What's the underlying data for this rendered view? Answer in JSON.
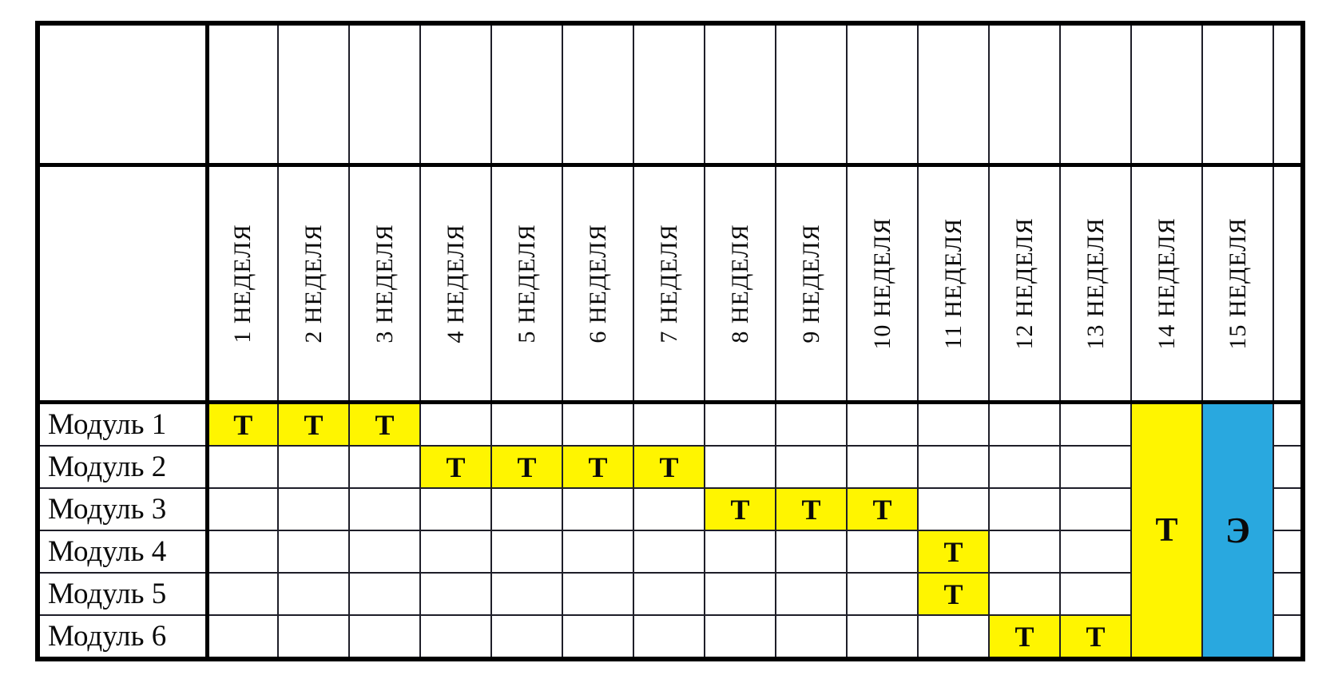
{
  "table": {
    "weeks": [
      "1 НЕДЕЛЯ",
      "2 НЕДЕЛЯ",
      "3 НЕДЕЛЯ",
      "4 НЕДЕЛЯ",
      "5 НЕДЕЛЯ",
      "6 НЕДЕЛЯ",
      "7 НЕДЕЛЯ",
      "8 НЕДЕЛЯ",
      "9 НЕДЕЛЯ",
      "10 НЕДЕЛЯ",
      "11 НЕДЕЛЯ",
      "12 НЕДЕЛЯ",
      "13 НЕДЕЛЯ",
      "14 НЕДЕЛЯ",
      "15 НЕДЕЛЯ"
    ],
    "modules": [
      {
        "label": "Модуль 1",
        "marked_weeks": [
          1,
          2,
          3
        ]
      },
      {
        "label": "Модуль 2",
        "marked_weeks": [
          4,
          5,
          6,
          7
        ]
      },
      {
        "label": "Модуль 3",
        "marked_weeks": [
          8,
          9,
          10
        ]
      },
      {
        "label": "Модуль 4",
        "marked_weeks": [
          11
        ]
      },
      {
        "label": "Модуль 5",
        "marked_weeks": [
          11
        ]
      },
      {
        "label": "Модуль 6",
        "marked_weeks": [
          12,
          13
        ]
      }
    ],
    "markers": {
      "test": "Т",
      "exam": "Э"
    },
    "merged_week_columns": [
      {
        "week": 14,
        "marker": "Т",
        "fill": "yellow",
        "spans_all_modules": true
      },
      {
        "week": 15,
        "marker": "Э",
        "fill": "blue",
        "spans_all_modules": true
      }
    ],
    "colors": {
      "highlight_yellow": "#FFF500",
      "exam_blue": "#29A8DF",
      "grid_line": "#1e1e28",
      "border": "#000000",
      "cell_bg": "#ffffff"
    }
  }
}
